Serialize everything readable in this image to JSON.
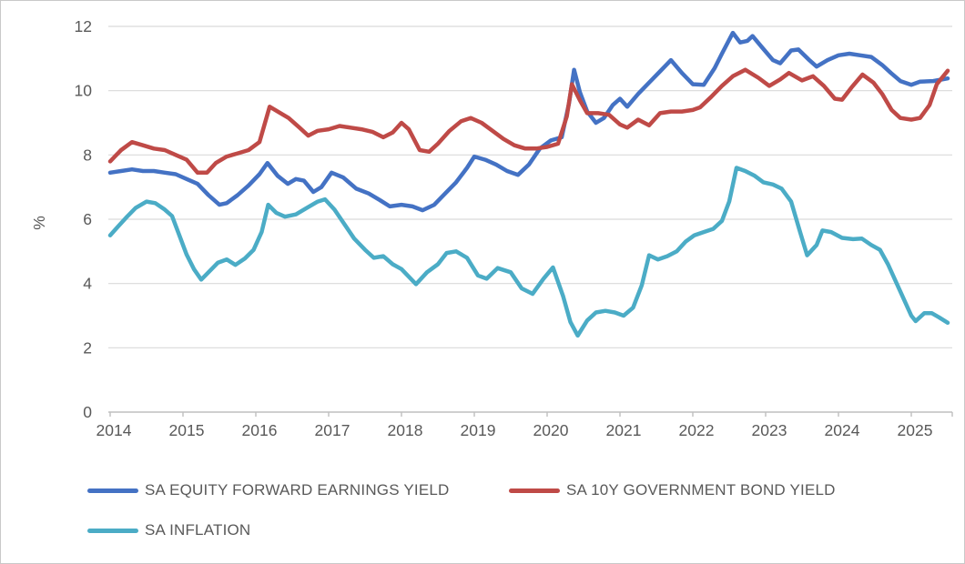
{
  "chart_data": {
    "type": "line",
    "title": "",
    "ylabel": "%",
    "ylim": [
      0,
      12
    ],
    "yticks": [
      0,
      2,
      4,
      6,
      8,
      10,
      12
    ],
    "xticks": [
      2014,
      2015,
      2016,
      2017,
      2018,
      2019,
      2020,
      2021,
      2022,
      2023,
      2024,
      2025
    ],
    "xlim": [
      2014,
      2025.56
    ],
    "grid": true,
    "legend_position": "bottom",
    "axis_color": "#bfbfbf",
    "gridline_color": "#d9d9d9",
    "series": [
      {
        "name": "SA EQUITY FORWARD EARNINGS YIELD",
        "color": "#4472c4",
        "points": [
          [
            2014.0,
            7.45
          ],
          [
            2014.15,
            7.5
          ],
          [
            2014.3,
            7.55
          ],
          [
            2014.45,
            7.5
          ],
          [
            2014.6,
            7.5
          ],
          [
            2014.75,
            7.45
          ],
          [
            2014.9,
            7.4
          ],
          [
            2015.05,
            7.25
          ],
          [
            2015.2,
            7.1
          ],
          [
            2015.35,
            6.75
          ],
          [
            2015.5,
            6.45
          ],
          [
            2015.6,
            6.5
          ],
          [
            2015.75,
            6.75
          ],
          [
            2015.9,
            7.05
          ],
          [
            2016.05,
            7.4
          ],
          [
            2016.16,
            7.75
          ],
          [
            2016.3,
            7.35
          ],
          [
            2016.44,
            7.1
          ],
          [
            2016.55,
            7.25
          ],
          [
            2016.66,
            7.2
          ],
          [
            2016.79,
            6.85
          ],
          [
            2016.9,
            7.0
          ],
          [
            2017.04,
            7.45
          ],
          [
            2017.2,
            7.3
          ],
          [
            2017.38,
            6.95
          ],
          [
            2017.55,
            6.8
          ],
          [
            2017.7,
            6.6
          ],
          [
            2017.84,
            6.4
          ],
          [
            2018.0,
            6.45
          ],
          [
            2018.15,
            6.4
          ],
          [
            2018.29,
            6.28
          ],
          [
            2018.45,
            6.45
          ],
          [
            2018.6,
            6.8
          ],
          [
            2018.75,
            7.15
          ],
          [
            2018.9,
            7.6
          ],
          [
            2019.0,
            7.95
          ],
          [
            2019.15,
            7.85
          ],
          [
            2019.3,
            7.7
          ],
          [
            2019.45,
            7.5
          ],
          [
            2019.6,
            7.38
          ],
          [
            2019.75,
            7.7
          ],
          [
            2019.9,
            8.2
          ],
          [
            2020.05,
            8.45
          ],
          [
            2020.2,
            8.55
          ],
          [
            2020.3,
            9.6
          ],
          [
            2020.37,
            10.65
          ],
          [
            2020.45,
            9.95
          ],
          [
            2020.55,
            9.35
          ],
          [
            2020.67,
            9.0
          ],
          [
            2020.78,
            9.15
          ],
          [
            2020.9,
            9.55
          ],
          [
            2021.0,
            9.75
          ],
          [
            2021.1,
            9.5
          ],
          [
            2021.25,
            9.9
          ],
          [
            2021.4,
            10.25
          ],
          [
            2021.55,
            10.6
          ],
          [
            2021.7,
            10.95
          ],
          [
            2021.85,
            10.55
          ],
          [
            2022.0,
            10.2
          ],
          [
            2022.15,
            10.18
          ],
          [
            2022.3,
            10.7
          ],
          [
            2022.4,
            11.15
          ],
          [
            2022.55,
            11.8
          ],
          [
            2022.65,
            11.5
          ],
          [
            2022.75,
            11.55
          ],
          [
            2022.82,
            11.7
          ],
          [
            2022.95,
            11.35
          ],
          [
            2023.1,
            10.95
          ],
          [
            2023.2,
            10.85
          ],
          [
            2023.35,
            11.25
          ],
          [
            2023.45,
            11.28
          ],
          [
            2023.6,
            10.95
          ],
          [
            2023.7,
            10.75
          ],
          [
            2023.85,
            10.95
          ],
          [
            2024.0,
            11.1
          ],
          [
            2024.15,
            11.15
          ],
          [
            2024.3,
            11.1
          ],
          [
            2024.45,
            11.05
          ],
          [
            2024.6,
            10.8
          ],
          [
            2024.72,
            10.55
          ],
          [
            2024.85,
            10.3
          ],
          [
            2025.0,
            10.18
          ],
          [
            2025.12,
            10.28
          ],
          [
            2025.3,
            10.3
          ],
          [
            2025.5,
            10.38
          ]
        ]
      },
      {
        "name": "SA 10Y GOVERNMENT BOND YIELD",
        "color": "#bf4a47",
        "points": [
          [
            2014.0,
            7.8
          ],
          [
            2014.15,
            8.15
          ],
          [
            2014.3,
            8.4
          ],
          [
            2014.45,
            8.3
          ],
          [
            2014.6,
            8.2
          ],
          [
            2014.75,
            8.15
          ],
          [
            2014.9,
            8.0
          ],
          [
            2015.05,
            7.85
          ],
          [
            2015.2,
            7.45
          ],
          [
            2015.33,
            7.45
          ],
          [
            2015.45,
            7.75
          ],
          [
            2015.6,
            7.95
          ],
          [
            2015.75,
            8.05
          ],
          [
            2015.9,
            8.15
          ],
          [
            2016.05,
            8.4
          ],
          [
            2016.19,
            9.5
          ],
          [
            2016.3,
            9.35
          ],
          [
            2016.45,
            9.15
          ],
          [
            2016.6,
            8.85
          ],
          [
            2016.72,
            8.6
          ],
          [
            2016.85,
            8.75
          ],
          [
            2017.0,
            8.8
          ],
          [
            2017.15,
            8.9
          ],
          [
            2017.3,
            8.85
          ],
          [
            2017.45,
            8.8
          ],
          [
            2017.6,
            8.72
          ],
          [
            2017.75,
            8.55
          ],
          [
            2017.88,
            8.7
          ],
          [
            2018.0,
            9.0
          ],
          [
            2018.1,
            8.8
          ],
          [
            2018.25,
            8.15
          ],
          [
            2018.38,
            8.1
          ],
          [
            2018.5,
            8.35
          ],
          [
            2018.66,
            8.75
          ],
          [
            2018.82,
            9.05
          ],
          [
            2018.95,
            9.15
          ],
          [
            2019.1,
            9.0
          ],
          [
            2019.25,
            8.75
          ],
          [
            2019.4,
            8.5
          ],
          [
            2019.55,
            8.3
          ],
          [
            2019.7,
            8.2
          ],
          [
            2019.85,
            8.2
          ],
          [
            2020.0,
            8.25
          ],
          [
            2020.15,
            8.35
          ],
          [
            2020.27,
            9.2
          ],
          [
            2020.34,
            10.2
          ],
          [
            2020.45,
            9.7
          ],
          [
            2020.55,
            9.3
          ],
          [
            2020.7,
            9.3
          ],
          [
            2020.85,
            9.25
          ],
          [
            2021.0,
            8.95
          ],
          [
            2021.1,
            8.85
          ],
          [
            2021.25,
            9.1
          ],
          [
            2021.4,
            8.92
          ],
          [
            2021.55,
            9.3
          ],
          [
            2021.7,
            9.35
          ],
          [
            2021.85,
            9.35
          ],
          [
            2022.0,
            9.4
          ],
          [
            2022.1,
            9.48
          ],
          [
            2022.25,
            9.8
          ],
          [
            2022.4,
            10.15
          ],
          [
            2022.55,
            10.45
          ],
          [
            2022.72,
            10.65
          ],
          [
            2022.9,
            10.4
          ],
          [
            2023.05,
            10.15
          ],
          [
            2023.2,
            10.35
          ],
          [
            2023.32,
            10.55
          ],
          [
            2023.5,
            10.32
          ],
          [
            2023.65,
            10.45
          ],
          [
            2023.8,
            10.15
          ],
          [
            2023.95,
            9.75
          ],
          [
            2024.05,
            9.72
          ],
          [
            2024.18,
            10.1
          ],
          [
            2024.33,
            10.5
          ],
          [
            2024.48,
            10.25
          ],
          [
            2024.6,
            9.9
          ],
          [
            2024.73,
            9.4
          ],
          [
            2024.85,
            9.15
          ],
          [
            2025.0,
            9.1
          ],
          [
            2025.12,
            9.15
          ],
          [
            2025.25,
            9.55
          ],
          [
            2025.35,
            10.2
          ],
          [
            2025.5,
            10.62
          ]
        ]
      },
      {
        "name": "SA INFLATION",
        "color": "#4bacc6",
        "points": [
          [
            2014.0,
            5.5
          ],
          [
            2014.1,
            5.75
          ],
          [
            2014.22,
            6.05
          ],
          [
            2014.35,
            6.35
          ],
          [
            2014.5,
            6.55
          ],
          [
            2014.62,
            6.5
          ],
          [
            2014.75,
            6.3
          ],
          [
            2014.85,
            6.1
          ],
          [
            2014.95,
            5.5
          ],
          [
            2015.05,
            4.9
          ],
          [
            2015.15,
            4.45
          ],
          [
            2015.25,
            4.12
          ],
          [
            2015.35,
            4.35
          ],
          [
            2015.48,
            4.65
          ],
          [
            2015.6,
            4.75
          ],
          [
            2015.72,
            4.58
          ],
          [
            2015.85,
            4.78
          ],
          [
            2015.97,
            5.05
          ],
          [
            2016.08,
            5.6
          ],
          [
            2016.17,
            6.45
          ],
          [
            2016.28,
            6.2
          ],
          [
            2016.4,
            6.08
          ],
          [
            2016.55,
            6.15
          ],
          [
            2016.7,
            6.35
          ],
          [
            2016.85,
            6.55
          ],
          [
            2016.95,
            6.62
          ],
          [
            2017.08,
            6.3
          ],
          [
            2017.2,
            5.9
          ],
          [
            2017.35,
            5.4
          ],
          [
            2017.5,
            5.05
          ],
          [
            2017.62,
            4.8
          ],
          [
            2017.75,
            4.85
          ],
          [
            2017.88,
            4.6
          ],
          [
            2018.0,
            4.45
          ],
          [
            2018.2,
            3.98
          ],
          [
            2018.35,
            4.35
          ],
          [
            2018.5,
            4.6
          ],
          [
            2018.62,
            4.95
          ],
          [
            2018.75,
            5.0
          ],
          [
            2018.9,
            4.8
          ],
          [
            2019.05,
            4.25
          ],
          [
            2019.17,
            4.15
          ],
          [
            2019.32,
            4.48
          ],
          [
            2019.5,
            4.35
          ],
          [
            2019.65,
            3.85
          ],
          [
            2019.8,
            3.68
          ],
          [
            2019.95,
            4.15
          ],
          [
            2020.08,
            4.5
          ],
          [
            2020.22,
            3.6
          ],
          [
            2020.32,
            2.8
          ],
          [
            2020.42,
            2.38
          ],
          [
            2020.55,
            2.85
          ],
          [
            2020.67,
            3.1
          ],
          [
            2020.8,
            3.15
          ],
          [
            2020.93,
            3.1
          ],
          [
            2021.05,
            3.0
          ],
          [
            2021.18,
            3.25
          ],
          [
            2021.3,
            3.95
          ],
          [
            2021.4,
            4.88
          ],
          [
            2021.52,
            4.75
          ],
          [
            2021.65,
            4.85
          ],
          [
            2021.78,
            5.0
          ],
          [
            2021.9,
            5.3
          ],
          [
            2022.02,
            5.5
          ],
          [
            2022.15,
            5.6
          ],
          [
            2022.28,
            5.7
          ],
          [
            2022.4,
            5.95
          ],
          [
            2022.5,
            6.55
          ],
          [
            2022.6,
            7.6
          ],
          [
            2022.72,
            7.5
          ],
          [
            2022.85,
            7.35
          ],
          [
            2022.97,
            7.15
          ],
          [
            2023.1,
            7.08
          ],
          [
            2023.22,
            6.95
          ],
          [
            2023.35,
            6.55
          ],
          [
            2023.48,
            5.55
          ],
          [
            2023.57,
            4.88
          ],
          [
            2023.7,
            5.2
          ],
          [
            2023.78,
            5.65
          ],
          [
            2023.9,
            5.6
          ],
          [
            2024.05,
            5.42
          ],
          [
            2024.2,
            5.38
          ],
          [
            2024.32,
            5.4
          ],
          [
            2024.45,
            5.2
          ],
          [
            2024.57,
            5.05
          ],
          [
            2024.68,
            4.6
          ],
          [
            2024.8,
            4.0
          ],
          [
            2024.9,
            3.5
          ],
          [
            2025.0,
            3.0
          ],
          [
            2025.06,
            2.83
          ],
          [
            2025.18,
            3.08
          ],
          [
            2025.28,
            3.08
          ],
          [
            2025.38,
            2.95
          ],
          [
            2025.5,
            2.78
          ]
        ]
      }
    ]
  }
}
